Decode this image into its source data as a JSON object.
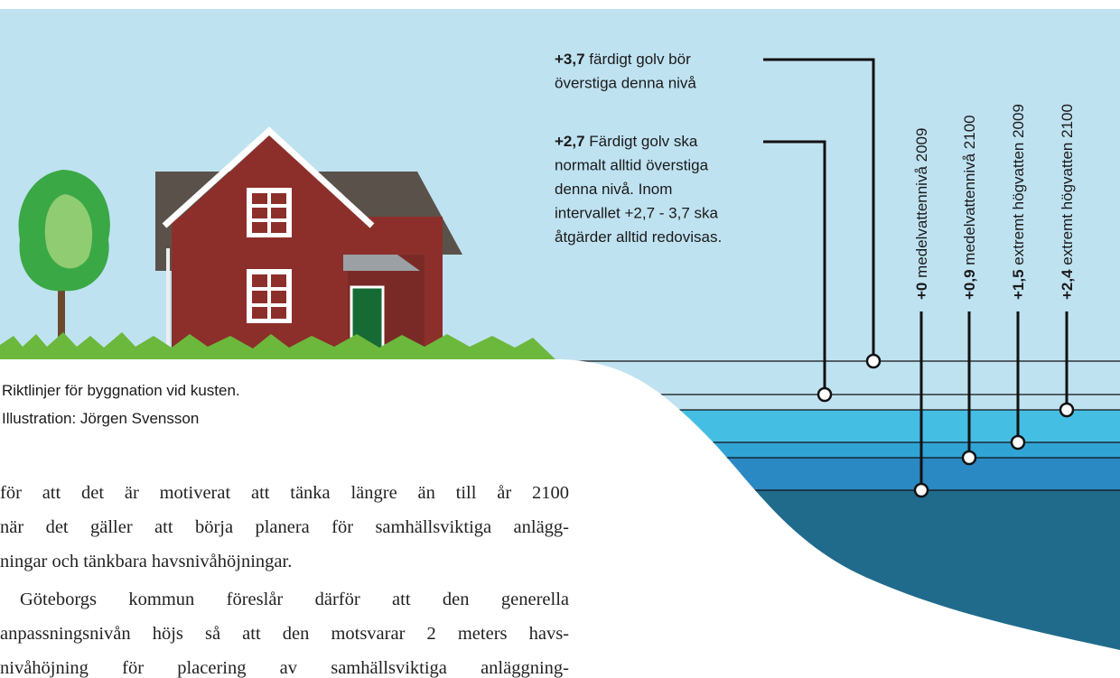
{
  "caption": [
    "Riktlinjer för byggnation vid kusten.",
    "Illustration: Jörgen Svensson"
  ],
  "annotations": [
    {
      "value": "+3,7",
      "lines": [
        " färdigt golv bör",
        "överstiga denna nivå"
      ]
    },
    {
      "value": "+2,7",
      "lines": [
        " Färdigt golv ska",
        "normalt alltid överstiga",
        "denna nivå. Inom",
        "intervallet +2,7 - 3,7 ska",
        "åtgärder alltid redovisas."
      ]
    }
  ],
  "levels": [
    {
      "value": "+0",
      "text": " medelvattennivå 2009"
    },
    {
      "value": "+0,9",
      "text": " medelvattennivå 2100"
    },
    {
      "value": "+1,5",
      "text": " extremt högvatten 2009"
    },
    {
      "value": "+2,4",
      "text": " extremt högvatten 2100"
    }
  ],
  "body": {
    "lines": [
      "för att det är motiverat att tänka längre än till år 2100",
      "när det gäller att börja planera för samhällsviktiga anlägg-",
      "ningar och tänkbara havsnivåhöjningar.",
      "Göteborgs kommun föreslår därför att den generella",
      "anpassningsnivån höjs så att den motsvarar 2 meters havs-",
      "nivåhöjning för placering av samhällsviktiga anläggning-"
    ]
  }
}
